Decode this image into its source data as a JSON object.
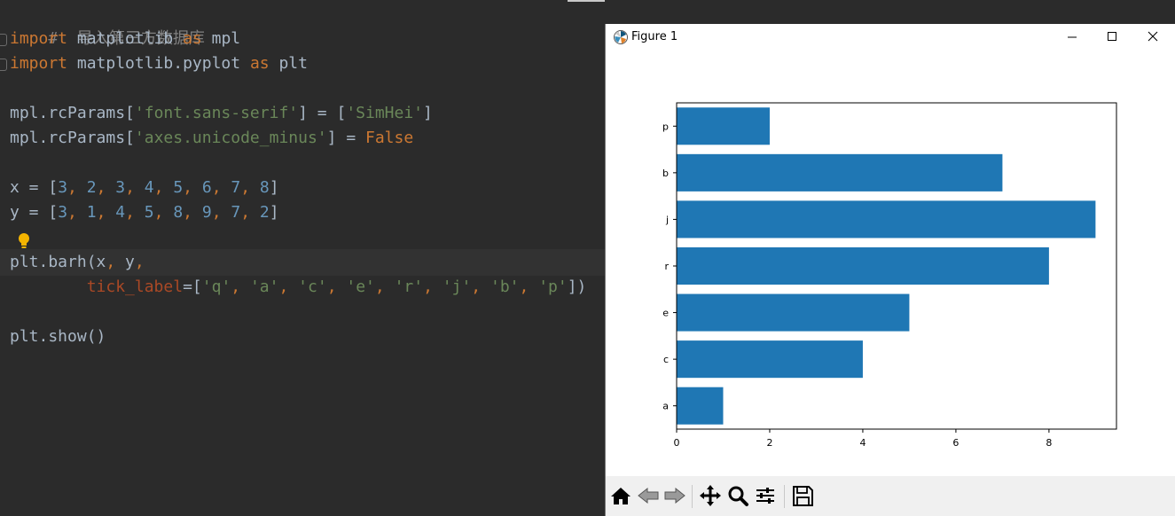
{
  "editor": {
    "comment": "#  导入第三方数据库",
    "line_import1": {
      "kw": "import",
      "mod": " matplotlib ",
      "as": "as",
      "alias": " mpl"
    },
    "line_import2": {
      "kw": "import",
      "mod": " matplotlib.pyplot ",
      "as": "as",
      "alias": " plt"
    },
    "line_rc1": {
      "pre": "mpl.rcParams[",
      "key": "'font.sans-serif'",
      "mid": "] = [",
      "val": "'SimHei'",
      "post": "]"
    },
    "line_rc2": {
      "pre": "mpl.rcParams[",
      "key": "'axes.unicode_minus'",
      "mid": "] = ",
      "val": "False"
    },
    "line_x": {
      "pre": "x = [",
      "post": "]",
      "values": [
        "3",
        "2",
        "3",
        "4",
        "5",
        "6",
        "7",
        "8"
      ]
    },
    "line_y": {
      "pre": "y = [",
      "post": "]",
      "values": [
        "3",
        "1",
        "4",
        "5",
        "8",
        "9",
        "7",
        "2"
      ]
    },
    "line_barh": {
      "pre": "plt.barh(x",
      "comma": ",",
      "post": " y",
      "comma2": ","
    },
    "line_tick": {
      "indent": "        ",
      "param": "tick_label",
      "eq": "=[",
      "labels": [
        "'q'",
        "'a'",
        "'c'",
        "'e'",
        "'r'",
        "'j'",
        "'b'",
        "'p'"
      ],
      "post": "])"
    },
    "line_show": "plt.show()"
  },
  "figure_window": {
    "title": "Figure 1",
    "toolbar": [
      "home-icon",
      "back-icon",
      "forward-icon",
      "pan-icon",
      "zoom-icon",
      "configure-subplots-icon",
      "save-icon"
    ]
  },
  "chart_data": {
    "type": "bar",
    "orientation": "horizontal",
    "title": "",
    "xlabel": "",
    "ylabel": "",
    "categories": [
      "a",
      "c",
      "e",
      "r",
      "j",
      "b",
      "p"
    ],
    "positions": [
      2,
      3,
      4,
      5,
      6,
      7,
      8
    ],
    "values": [
      1,
      4,
      5,
      8,
      9,
      7,
      2
    ],
    "xlim": [
      0,
      9.45
    ],
    "ylim": [
      1.5,
      8.5
    ],
    "xticks": [
      0,
      2,
      4,
      6,
      8
    ],
    "bar_color": "#1f77b4",
    "grid": false
  },
  "colors": {
    "editor_bg": "#2b2b2b",
    "keyword": "#cc7832",
    "string": "#6a8759",
    "number": "#6897bb",
    "text": "#a9b7c6",
    "comment": "#808080",
    "bar": "#1f77b4"
  }
}
